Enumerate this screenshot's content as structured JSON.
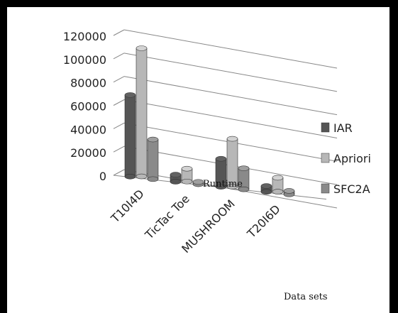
{
  "chart_data": {
    "type": "bar",
    "categories": [
      "T10I4D",
      "TicTac Toe",
      "MUSHROOM",
      "T20I6D"
    ],
    "series": [
      {
        "name": "IAR",
        "values": [
          70000,
          6000,
          24000,
          5000
        ],
        "color": "#555555"
      },
      {
        "name": "Apriori",
        "values": [
          110000,
          11000,
          41000,
          12000
        ],
        "color": "#b7b7b7"
      },
      {
        "name": "SFC2A",
        "values": [
          34000,
          2000,
          18000,
          3000
        ],
        "color": "#8a8a8a"
      }
    ],
    "ylim": [
      0,
      120000
    ],
    "yticks": [
      0,
      20000,
      40000,
      60000,
      80000,
      100000,
      120000
    ],
    "ytick_labels": [
      "0",
      "20000",
      "40000",
      "60000",
      "80000",
      "100000",
      "120000"
    ],
    "ylabel": "Runtime",
    "xlabel": "Data sets",
    "legend_position": "right",
    "grid": true,
    "style": "3d-cylinder"
  }
}
